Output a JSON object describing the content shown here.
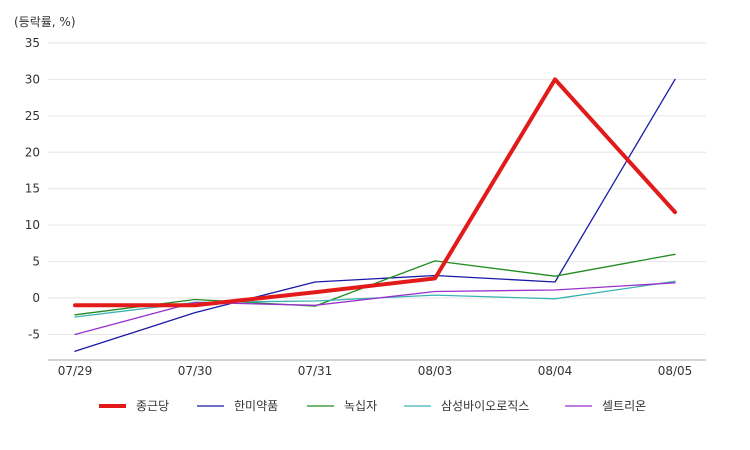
{
  "chart_data": {
    "type": "line",
    "unit_label": "(등락률, %)",
    "categories": [
      "07/29",
      "07/30",
      "07/31",
      "08/03",
      "08/04",
      "08/05"
    ],
    "ylim": [
      -8.5,
      35
    ],
    "yticks": [
      -5,
      0,
      5,
      10,
      15,
      20,
      25,
      30,
      35
    ],
    "grid": "horizontal",
    "legend_position": "bottom",
    "series": [
      {
        "name": "종근당",
        "color": "#e31a1a",
        "emphasis": true,
        "values": [
          -1.0,
          -1.0,
          0.8,
          2.7,
          30.0,
          11.8
        ]
      },
      {
        "name": "한미약품",
        "color": "#1a1aa8",
        "emphasis": false,
        "values": [
          -7.3,
          -2.0,
          2.2,
          3.1,
          2.2,
          30.0
        ]
      },
      {
        "name": "녹십자",
        "color": "#228b22",
        "emphasis": false,
        "values": [
          -2.3,
          -0.2,
          -1.1,
          5.1,
          3.0,
          6.0
        ]
      },
      {
        "name": "삼성바이오로직스",
        "color": "#3cb3b3",
        "emphasis": false,
        "values": [
          -2.6,
          -0.6,
          -0.4,
          0.4,
          -0.1,
          2.3
        ]
      },
      {
        "name": "셀트리온",
        "color": "#9932cc",
        "emphasis": false,
        "values": [
          -5.0,
          -0.6,
          -1.0,
          0.9,
          1.1,
          2.1
        ]
      }
    ]
  }
}
